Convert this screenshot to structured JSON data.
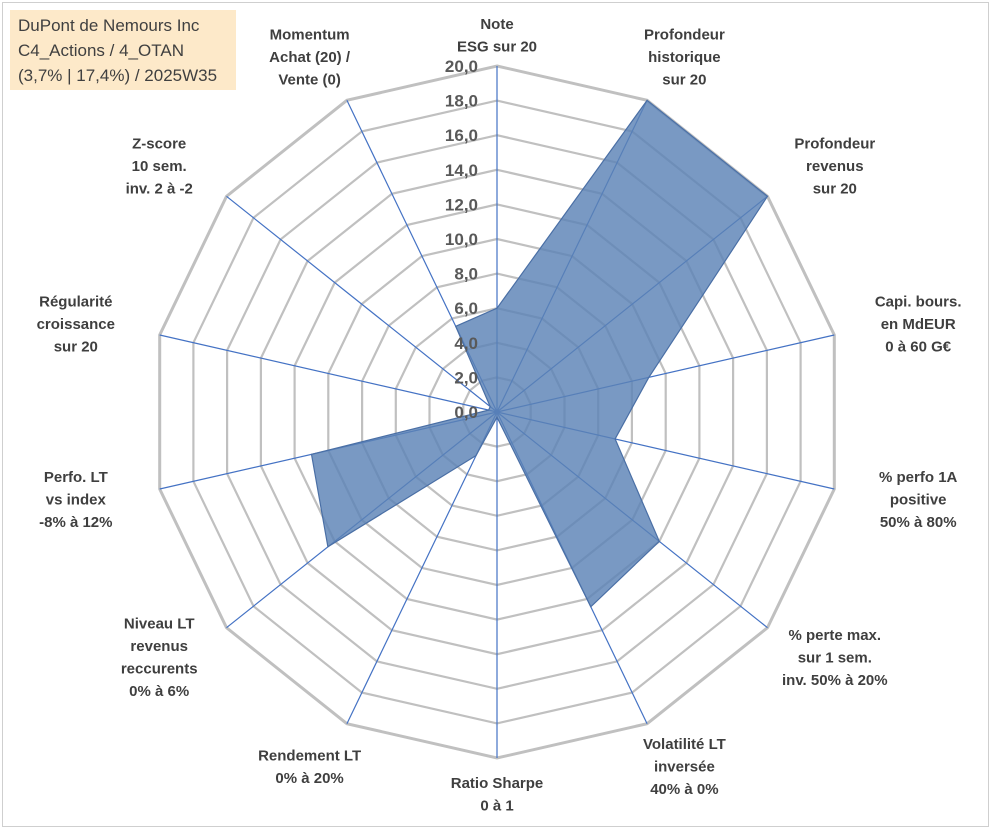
{
  "info": {
    "company": "DuPont de Nemours Inc",
    "line2": "C4_Actions / 4_OTAN",
    "line3": "(3,7% | 17,4%) / 2025W35"
  },
  "chart_data": {
    "type": "radar",
    "title": "",
    "rmin": 0,
    "rmax": 20,
    "rstep": 2,
    "grid": true,
    "tick_labels": [
      "0,0",
      "2,0",
      "4,0",
      "6,0",
      "8,0",
      "10,0",
      "12,0",
      "14,0",
      "16,0",
      "18,0",
      "20,0"
    ],
    "axes": [
      {
        "label": [
          "Note",
          "ESG sur 20"
        ],
        "value": 6
      },
      {
        "label": [
          "Profondeur",
          "historique",
          "sur 20"
        ],
        "value": 20
      },
      {
        "label": [
          "Profondeur",
          "revenus",
          "sur 20"
        ],
        "value": 20
      },
      {
        "label": [
          "Capi. bours.",
          "en MdEUR",
          "0 à 60 G€"
        ],
        "value": 9
      },
      {
        "label": [
          "% perfo 1A",
          "positive",
          "50% à 80%"
        ],
        "value": 7
      },
      {
        "label": [
          "% perte max.",
          "sur 1 sem.",
          "inv. 50% à 20%"
        ],
        "value": 12
      },
      {
        "label": [
          "Volatilité LT",
          "inversée",
          "40% à 0%"
        ],
        "value": 12.5
      },
      {
        "label": [
          "Ratio Sharpe",
          "0 à 1"
        ],
        "value": 0.3
      },
      {
        "label": [
          "Rendement LT",
          "0% à 20%"
        ],
        "value": 2.8
      },
      {
        "label": [
          "Niveau LT",
          "revenus",
          "reccurents",
          "0% à 6%"
        ],
        "value": 12.5
      },
      {
        "label": [
          "Perfo. LT",
          "vs index",
          "-8% à 12%"
        ],
        "value": 11
      },
      {
        "label": [
          "Régularité",
          "croissance",
          "sur 20"
        ],
        "value": 0.5
      },
      {
        "label": [
          "Z-score",
          "10 sem.",
          "inv. 2 à -2"
        ],
        "value": 0.5
      },
      {
        "label": [
          "Momentum",
          "Achat (20) /",
          "Vente (0)"
        ],
        "value": 5.5
      }
    ],
    "series": [
      {
        "values": [
          6,
          20,
          20,
          9,
          7,
          12,
          12.5,
          0.3,
          2.8,
          12.5,
          11,
          0.5,
          0.5,
          5.5
        ],
        "color": "#5b82b6"
      }
    ],
    "colors": {
      "grid": "#c0c0c0",
      "spoke": "#4472c4",
      "fill": "#5b82b6",
      "edge": "#4a6fa5",
      "text": "#3f3f3f",
      "tick": "#595959"
    }
  }
}
